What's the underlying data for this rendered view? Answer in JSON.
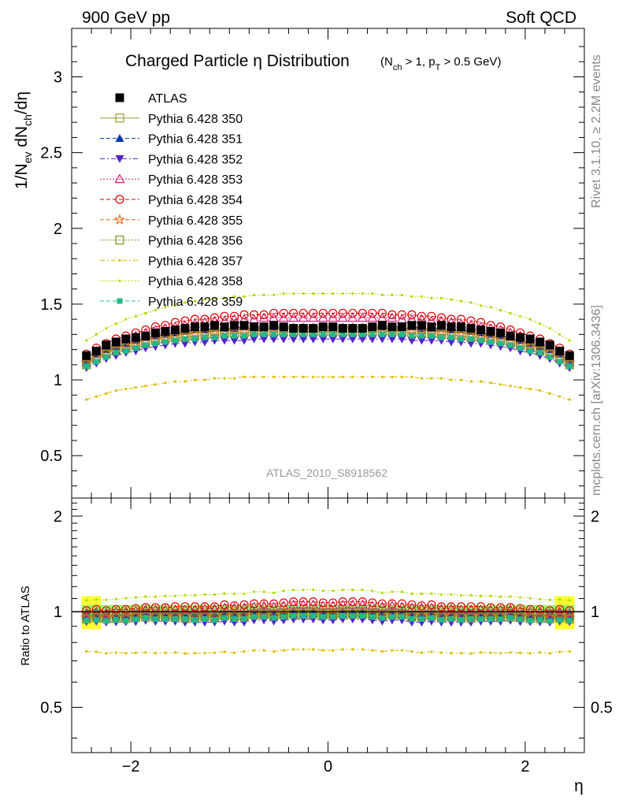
{
  "header": {
    "left": "900 GeV pp",
    "right": "Soft QCD"
  },
  "title": {
    "main": "Charged Particle η Distribution",
    "cuts": "(N_ch > 1, p_T > 0.5 GeV)"
  },
  "side_labels": {
    "rivet": "Rivet 3.1.10, ≥ 2.2M events",
    "mcplots": "mcplots.cern.ch [arXiv:1306.3436]"
  },
  "analysis_id": "ATLAS_2010_S8918562",
  "colors": {
    "data": "#000000",
    "ref_band": "#ffff33",
    "green_band": "#99ff66"
  },
  "chart_data": [
    {
      "type": "scatter",
      "panel": "main",
      "ylabel": "1/N_ev dN_ch/dη",
      "xlim": [
        -2.6,
        2.6
      ],
      "ylim": [
        0.22,
        3.32
      ],
      "yticks": [
        0.5,
        1,
        1.5,
        2,
        2.5,
        3
      ],
      "x": [
        -2.45,
        -2.35,
        -2.25,
        -2.15,
        -2.05,
        -1.95,
        -1.85,
        -1.75,
        -1.65,
        -1.55,
        -1.45,
        -1.35,
        -1.25,
        -1.15,
        -1.05,
        -0.95,
        -0.85,
        -0.75,
        -0.65,
        -0.55,
        -0.45,
        -0.35,
        -0.25,
        -0.15,
        -0.05,
        0.05,
        0.15,
        0.25,
        0.35,
        0.45,
        0.55,
        0.65,
        0.75,
        0.85,
        0.95,
        1.05,
        1.15,
        1.25,
        1.35,
        1.45,
        1.55,
        1.65,
        1.75,
        1.85,
        1.95,
        2.05,
        2.15,
        2.25,
        2.35,
        2.45
      ],
      "series": [
        {
          "name": "ATLAS",
          "color": "#000000",
          "marker": "filled-square",
          "line": "none",
          "values": [
            1.16,
            1.19,
            1.23,
            1.25,
            1.27,
            1.28,
            1.29,
            1.31,
            1.32,
            1.33,
            1.34,
            1.35,
            1.35,
            1.36,
            1.35,
            1.36,
            1.36,
            1.35,
            1.35,
            1.36,
            1.35,
            1.34,
            1.34,
            1.34,
            1.35,
            1.35,
            1.34,
            1.34,
            1.34,
            1.35,
            1.36,
            1.35,
            1.35,
            1.36,
            1.36,
            1.35,
            1.36,
            1.35,
            1.35,
            1.34,
            1.33,
            1.32,
            1.31,
            1.29,
            1.28,
            1.27,
            1.25,
            1.23,
            1.19,
            1.16
          ]
        },
        {
          "name": "Pythia 6.428 350",
          "color": "#999933",
          "marker": "open-square",
          "line": "solid",
          "values": [
            1.12,
            1.16,
            1.19,
            1.21,
            1.23,
            1.25,
            1.27,
            1.28,
            1.29,
            1.3,
            1.31,
            1.31,
            1.32,
            1.32,
            1.33,
            1.33,
            1.33,
            1.33,
            1.34,
            1.34,
            1.34,
            1.34,
            1.34,
            1.34,
            1.34,
            1.34,
            1.34,
            1.34,
            1.34,
            1.34,
            1.34,
            1.34,
            1.33,
            1.33,
            1.33,
            1.33,
            1.32,
            1.32,
            1.31,
            1.31,
            1.3,
            1.29,
            1.28,
            1.27,
            1.25,
            1.23,
            1.21,
            1.19,
            1.16,
            1.12
          ]
        },
        {
          "name": "Pythia 6.428 351",
          "color": "#0033aa",
          "marker": "filled-triangle-up",
          "line": "dash",
          "values": [
            1.13,
            1.17,
            1.2,
            1.22,
            1.24,
            1.26,
            1.28,
            1.29,
            1.3,
            1.31,
            1.32,
            1.33,
            1.33,
            1.34,
            1.34,
            1.34,
            1.35,
            1.35,
            1.35,
            1.35,
            1.35,
            1.35,
            1.35,
            1.35,
            1.35,
            1.35,
            1.35,
            1.35,
            1.35,
            1.35,
            1.35,
            1.35,
            1.35,
            1.35,
            1.34,
            1.34,
            1.34,
            1.33,
            1.33,
            1.32,
            1.31,
            1.3,
            1.29,
            1.28,
            1.26,
            1.24,
            1.22,
            1.2,
            1.17,
            1.13
          ]
        },
        {
          "name": "Pythia 6.428 352",
          "color": "#5522cc",
          "marker": "filled-triangle-down",
          "line": "dashdot",
          "values": [
            1.08,
            1.11,
            1.14,
            1.16,
            1.18,
            1.19,
            1.21,
            1.22,
            1.23,
            1.24,
            1.24,
            1.25,
            1.25,
            1.26,
            1.26,
            1.26,
            1.26,
            1.27,
            1.27,
            1.27,
            1.27,
            1.27,
            1.27,
            1.27,
            1.27,
            1.27,
            1.27,
            1.27,
            1.27,
            1.27,
            1.27,
            1.27,
            1.27,
            1.26,
            1.26,
            1.26,
            1.26,
            1.25,
            1.25,
            1.24,
            1.24,
            1.23,
            1.22,
            1.21,
            1.19,
            1.18,
            1.16,
            1.14,
            1.11,
            1.08
          ]
        },
        {
          "name": "Pythia 6.428 353",
          "color": "#cc2277",
          "marker": "open-triangle-up",
          "line": "dot",
          "values": [
            1.15,
            1.19,
            1.22,
            1.25,
            1.27,
            1.29,
            1.31,
            1.33,
            1.34,
            1.35,
            1.36,
            1.37,
            1.38,
            1.39,
            1.39,
            1.4,
            1.4,
            1.4,
            1.41,
            1.41,
            1.41,
            1.41,
            1.41,
            1.41,
            1.41,
            1.41,
            1.41,
            1.41,
            1.41,
            1.41,
            1.41,
            1.41,
            1.4,
            1.4,
            1.4,
            1.39,
            1.39,
            1.38,
            1.37,
            1.36,
            1.35,
            1.34,
            1.33,
            1.31,
            1.29,
            1.27,
            1.25,
            1.22,
            1.19,
            1.15
          ]
        },
        {
          "name": "Pythia 6.428 354",
          "color": "#dd0000",
          "marker": "open-circle",
          "line": "dash",
          "values": [
            1.17,
            1.21,
            1.24,
            1.27,
            1.29,
            1.31,
            1.33,
            1.35,
            1.36,
            1.38,
            1.39,
            1.4,
            1.4,
            1.41,
            1.42,
            1.42,
            1.43,
            1.43,
            1.43,
            1.44,
            1.44,
            1.44,
            1.44,
            1.44,
            1.44,
            1.44,
            1.44,
            1.44,
            1.44,
            1.44,
            1.44,
            1.43,
            1.43,
            1.43,
            1.42,
            1.42,
            1.41,
            1.4,
            1.4,
            1.39,
            1.38,
            1.36,
            1.35,
            1.33,
            1.31,
            1.29,
            1.27,
            1.24,
            1.21,
            1.17
          ]
        },
        {
          "name": "Pythia 6.428 355",
          "color": "#ee6611",
          "marker": "open-star",
          "line": "dash",
          "values": [
            1.11,
            1.15,
            1.18,
            1.21,
            1.23,
            1.24,
            1.26,
            1.27,
            1.28,
            1.29,
            1.3,
            1.31,
            1.31,
            1.32,
            1.32,
            1.33,
            1.33,
            1.33,
            1.33,
            1.34,
            1.34,
            1.34,
            1.34,
            1.34,
            1.34,
            1.34,
            1.34,
            1.34,
            1.34,
            1.34,
            1.34,
            1.33,
            1.33,
            1.33,
            1.33,
            1.32,
            1.32,
            1.31,
            1.31,
            1.3,
            1.29,
            1.28,
            1.27,
            1.26,
            1.24,
            1.23,
            1.21,
            1.18,
            1.15,
            1.11
          ]
        },
        {
          "name": "Pythia 6.428 356",
          "color": "#888822",
          "marker": "open-square",
          "line": "dot",
          "values": [
            1.1,
            1.14,
            1.17,
            1.19,
            1.21,
            1.23,
            1.24,
            1.26,
            1.27,
            1.28,
            1.28,
            1.29,
            1.3,
            1.3,
            1.31,
            1.31,
            1.31,
            1.32,
            1.32,
            1.32,
            1.32,
            1.32,
            1.32,
            1.32,
            1.32,
            1.32,
            1.32,
            1.32,
            1.32,
            1.32,
            1.32,
            1.32,
            1.32,
            1.31,
            1.31,
            1.31,
            1.3,
            1.3,
            1.29,
            1.28,
            1.28,
            1.27,
            1.26,
            1.24,
            1.23,
            1.21,
            1.19,
            1.17,
            1.14,
            1.1
          ]
        },
        {
          "name": "Pythia 6.428 357",
          "color": "#ddbb00",
          "marker": "small-dot",
          "line": "dashdot",
          "values": [
            0.87,
            0.89,
            0.91,
            0.93,
            0.94,
            0.95,
            0.96,
            0.97,
            0.98,
            0.99,
            0.99,
            1.0,
            1.0,
            1.01,
            1.01,
            1.01,
            1.02,
            1.02,
            1.02,
            1.02,
            1.02,
            1.02,
            1.02,
            1.02,
            1.02,
            1.02,
            1.02,
            1.02,
            1.02,
            1.02,
            1.02,
            1.02,
            1.02,
            1.02,
            1.01,
            1.01,
            1.01,
            1.0,
            1.0,
            0.99,
            0.99,
            0.98,
            0.97,
            0.96,
            0.95,
            0.94,
            0.93,
            0.91,
            0.89,
            0.87
          ]
        },
        {
          "name": "Pythia 6.428 358",
          "color": "#aadd00",
          "marker": "small-dot",
          "line": "dot",
          "values": [
            1.26,
            1.3,
            1.34,
            1.37,
            1.4,
            1.42,
            1.44,
            1.46,
            1.48,
            1.49,
            1.51,
            1.52,
            1.53,
            1.54,
            1.54,
            1.55,
            1.55,
            1.56,
            1.56,
            1.56,
            1.57,
            1.57,
            1.57,
            1.57,
            1.57,
            1.57,
            1.57,
            1.57,
            1.57,
            1.57,
            1.56,
            1.56,
            1.56,
            1.55,
            1.55,
            1.54,
            1.54,
            1.53,
            1.52,
            1.51,
            1.49,
            1.48,
            1.46,
            1.44,
            1.42,
            1.4,
            1.37,
            1.34,
            1.3,
            1.26
          ]
        },
        {
          "name": "Pythia 6.428 359",
          "color": "#22bb88",
          "marker": "filled-square-small",
          "line": "dash",
          "values": [
            1.09,
            1.12,
            1.15,
            1.18,
            1.19,
            1.21,
            1.23,
            1.24,
            1.25,
            1.26,
            1.27,
            1.27,
            1.28,
            1.28,
            1.29,
            1.29,
            1.29,
            1.3,
            1.3,
            1.3,
            1.3,
            1.3,
            1.3,
            1.3,
            1.3,
            1.3,
            1.3,
            1.3,
            1.3,
            1.3,
            1.3,
            1.3,
            1.3,
            1.29,
            1.29,
            1.29,
            1.28,
            1.28,
            1.27,
            1.27,
            1.26,
            1.25,
            1.24,
            1.23,
            1.21,
            1.19,
            1.18,
            1.15,
            1.12,
            1.09
          ]
        }
      ]
    },
    {
      "type": "scatter",
      "panel": "ratio",
      "xlabel": "η",
      "ylabel": "Ratio to ATLAS",
      "xlim": [
        -2.6,
        2.6
      ],
      "ylim": [
        0.36,
        2.28
      ],
      "xticks": [
        -2,
        0,
        2
      ],
      "yticks": [
        0.5,
        1,
        2
      ],
      "reference_line": 1.0,
      "ref_band_inner": 0.05,
      "ref_band_outer_edge": 0.12
    }
  ]
}
